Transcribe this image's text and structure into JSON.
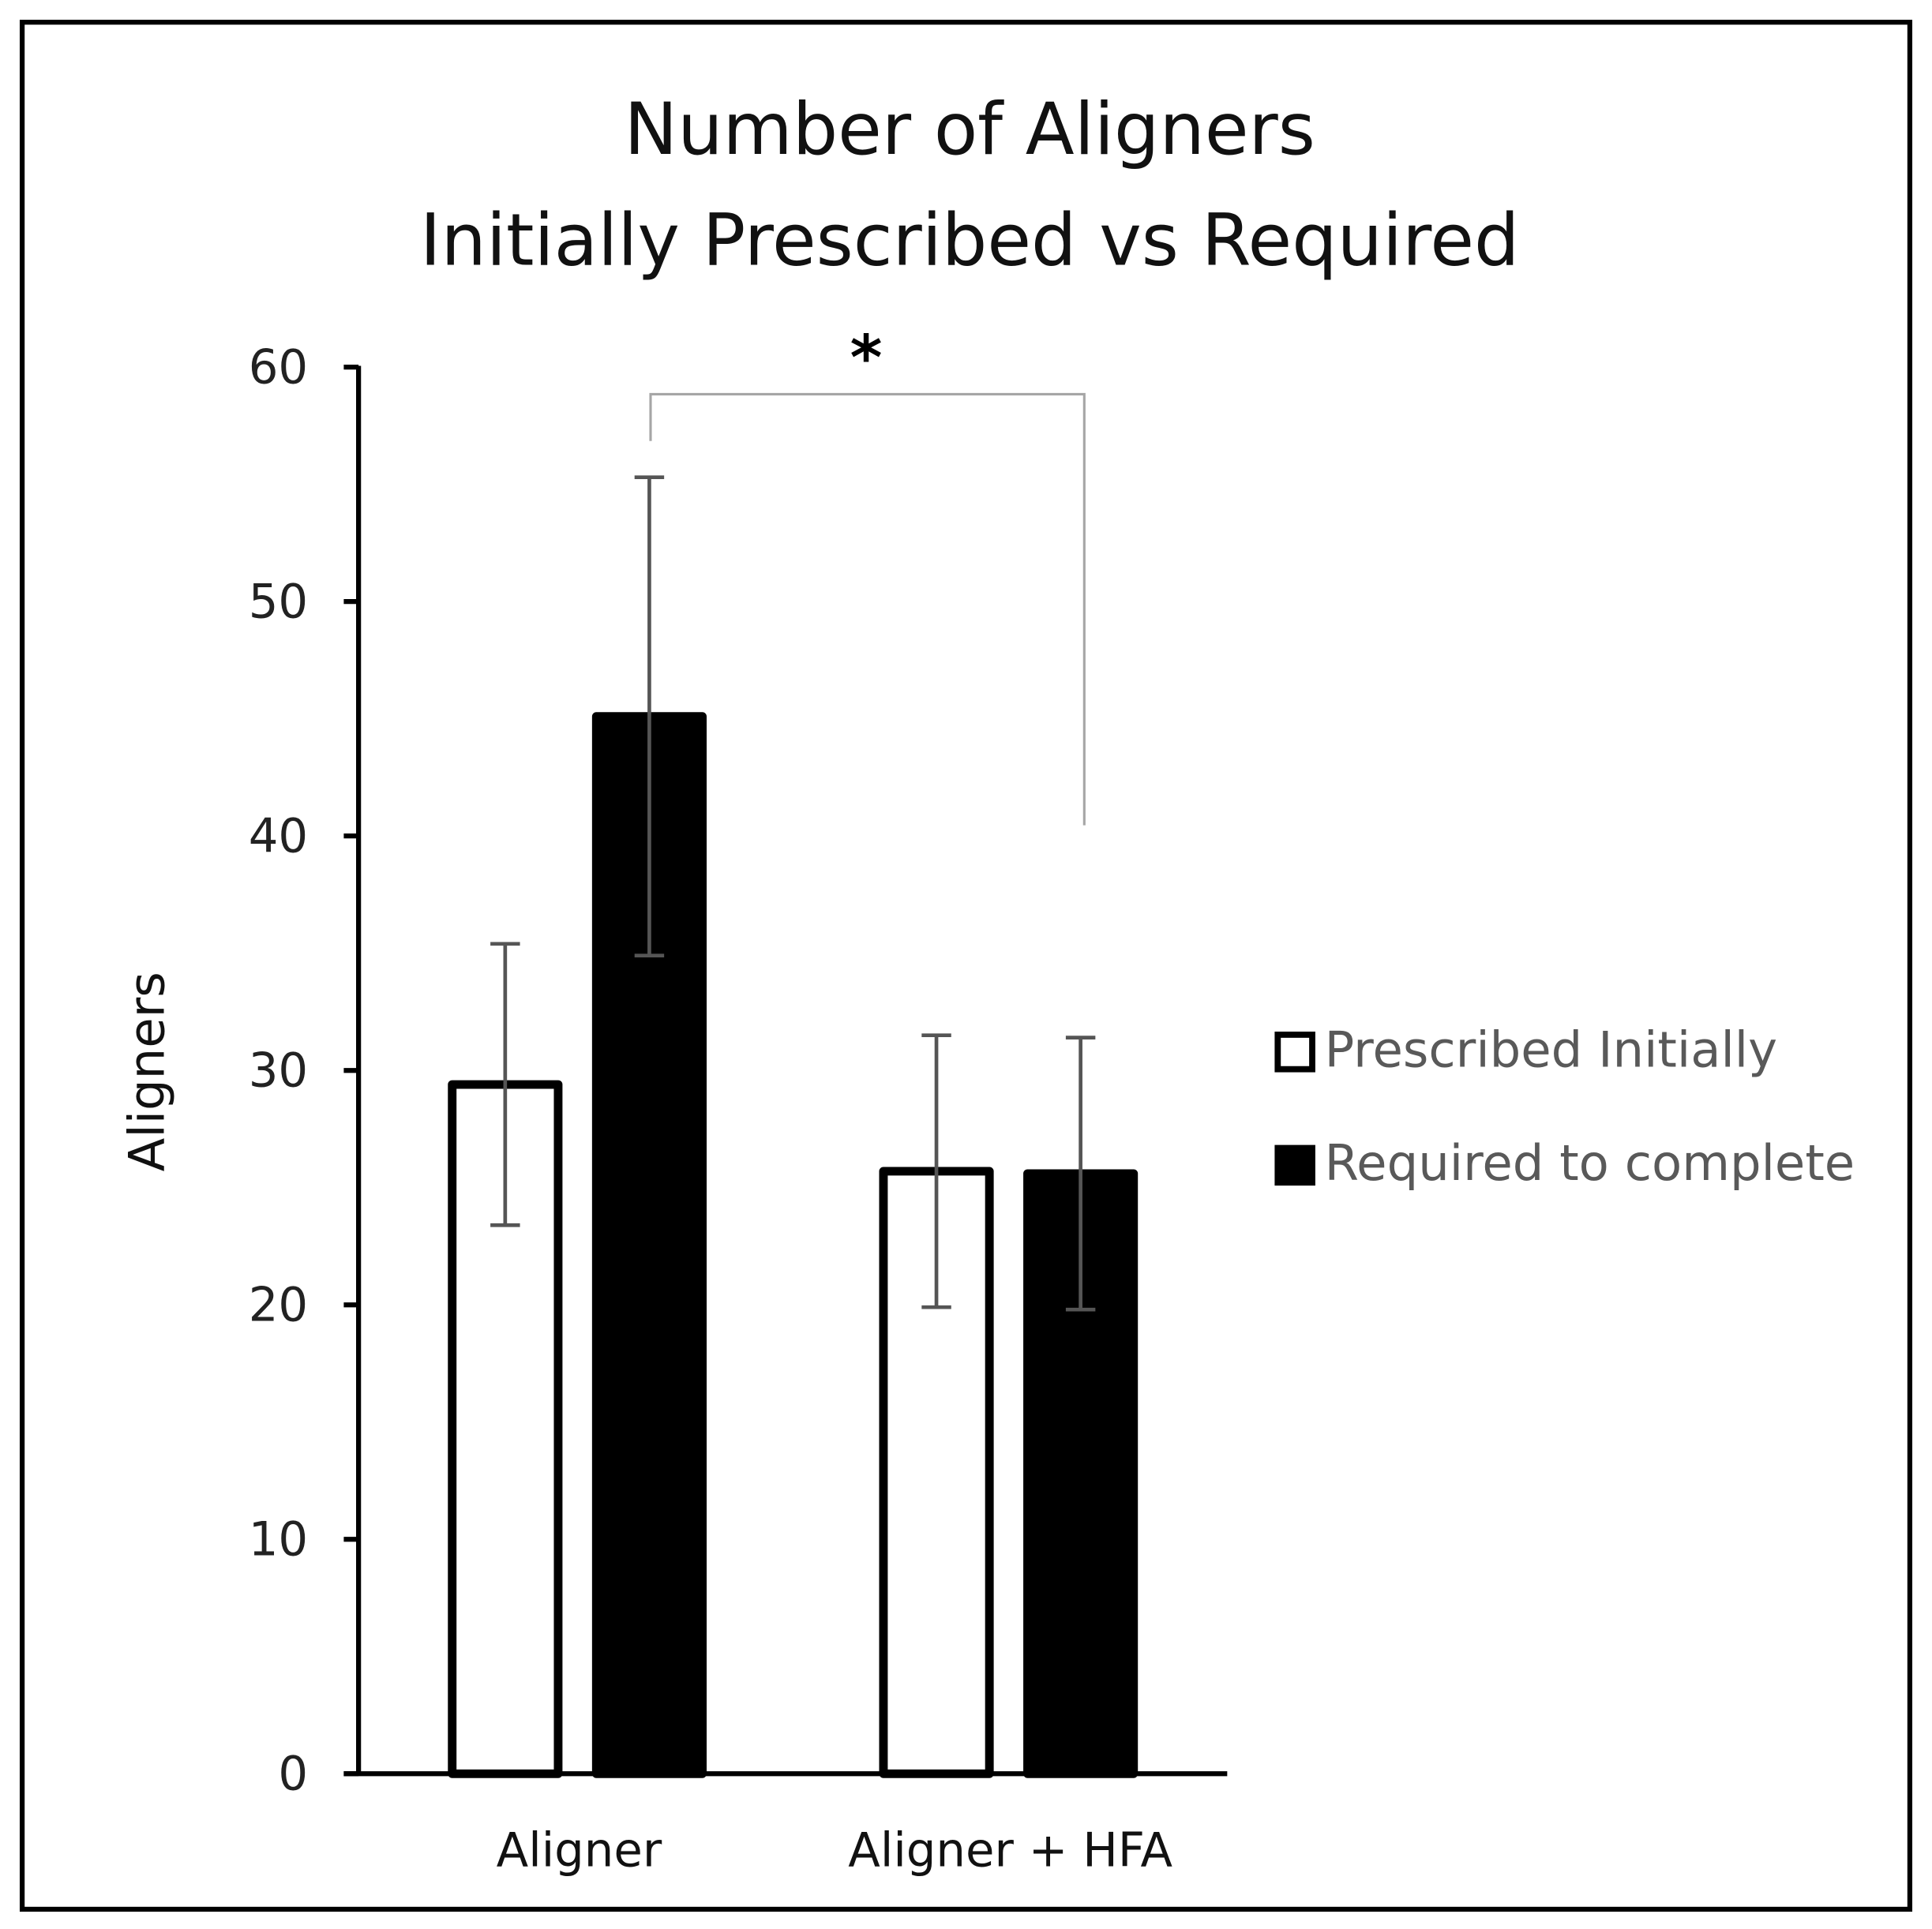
{
  "chart_data": {
    "type": "bar",
    "title": [
      "Number of Aligners",
      "Initially Prescribed vs Required"
    ],
    "xlabel": "",
    "ylabel": "Aligners",
    "ylim": [
      0,
      60
    ],
    "yticks": [
      0,
      10,
      20,
      30,
      40,
      50,
      60
    ],
    "categories": [
      "Aligner",
      "Aligner + HFA"
    ],
    "series": [
      {
        "name": "Prescribed Initially",
        "values": [
          29.4,
          25.7
        ],
        "errors": [
          6.0,
          5.8
        ],
        "fill": "#ffffff",
        "stroke": "#000000"
      },
      {
        "name": "Required to complete",
        "values": [
          45.1,
          25.6
        ],
        "errors": [
          10.2,
          5.8
        ],
        "fill": "#000000",
        "stroke": "#000000"
      }
    ],
    "annotations": [
      {
        "text": "*",
        "type": "significance-bracket",
        "between": [
          "Aligner / Required to complete",
          "Aligner + HFA / Required to complete"
        ]
      }
    ],
    "legend_position": "right",
    "grid": false,
    "colors": {
      "error_bar": "#555555",
      "bracket": "#a6a6a6"
    }
  }
}
